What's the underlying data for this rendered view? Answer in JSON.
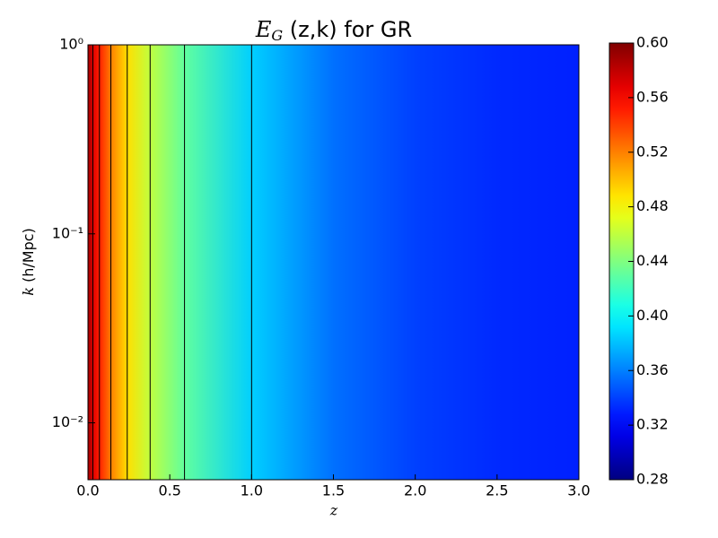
{
  "chart_data": {
    "type": "heatmap",
    "title": {
      "symbol": "E",
      "subscript": "G",
      "text": " (z,k) for  GR"
    },
    "x_label": "z",
    "y_label": {
      "symbol": "k",
      "text": " (h/Mpc)"
    },
    "x": [
      0,
      0.03,
      0.07,
      0.14,
      0.24,
      0.38,
      0.59,
      1.0,
      1.5,
      2.0,
      2.5,
      3.0
    ],
    "values": [
      0.59,
      0.57,
      0.55,
      0.52,
      0.49,
      0.46,
      0.43,
      0.385,
      0.355,
      0.34,
      0.333,
      0.33
    ],
    "contour_levels": [
      0.57,
      0.55,
      0.52,
      0.49,
      0.46,
      0.43,
      0.385
    ],
    "colormap": "jet",
    "clim": [
      0.28,
      0.6
    ],
    "cticks": [
      0.28,
      0.32,
      0.36,
      {
        "value": 0.4,
        "label": "0.40"
      },
      0.44,
      0.48,
      0.52,
      0.56,
      {
        "value": 0.6,
        "label": "0.60"
      }
    ],
    "xlim": [
      0,
      3
    ],
    "xticks": [
      {
        "value": 0,
        "label": "0.0"
      },
      0.5,
      {
        "value": 1,
        "label": "1.0"
      },
      1.5,
      {
        "value": 2,
        "label": "2.0"
      },
      2.5,
      {
        "value": 3,
        "label": "3.0"
      }
    ],
    "ylim": [
      0.005,
      1
    ],
    "ylog": true,
    "yticks": [
      {
        "value": 0.01,
        "label": "10⁻²"
      },
      {
        "value": 0.1,
        "label": "10⁻¹"
      },
      {
        "value": 1,
        "label": "10⁰"
      }
    ]
  }
}
